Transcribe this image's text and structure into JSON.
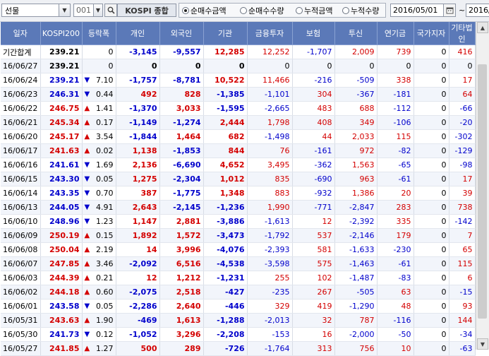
{
  "toolbar": {
    "market_select": "선물",
    "code_input": "001",
    "index_name": "KOSPI 종합",
    "radios": [
      {
        "label": "순매수금액",
        "selected": true
      },
      {
        "label": "순매수수량",
        "selected": false
      },
      {
        "label": "누적금액",
        "selected": false
      },
      {
        "label": "누적수량",
        "selected": false
      }
    ],
    "start_date": "2016/05/01",
    "range_sep": "~",
    "end_date": "2016/"
  },
  "columns": [
    "일자",
    "KOSPI200",
    "등락폭",
    "개인",
    "외국인",
    "기관",
    "금융투자",
    "보험",
    "투신",
    "연기금",
    "국가지자",
    "기타법인"
  ],
  "rows": [
    {
      "date": "기간합계",
      "kospi": "239.21",
      "dir": "",
      "chg": "0",
      "kospi_c": "k",
      "v": [
        [
          "-3,145",
          "b"
        ],
        [
          "-9,557",
          "b"
        ],
        [
          "12,285",
          "r"
        ],
        [
          "12,252",
          "r"
        ],
        [
          "-1,707",
          "b"
        ],
        [
          "2,009",
          "r"
        ],
        [
          "739",
          "r"
        ],
        [
          "0",
          "k"
        ],
        [
          "416",
          "r"
        ]
      ]
    },
    {
      "date": "16/06/27",
      "kospi": "239.21",
      "dir": "",
      "chg": "0",
      "kospi_c": "k",
      "v": [
        [
          "0",
          "k"
        ],
        [
          "0",
          "k"
        ],
        [
          "0",
          "k"
        ],
        [
          "0",
          "k"
        ],
        [
          "0",
          "k"
        ],
        [
          "0",
          "k"
        ],
        [
          "0",
          "k"
        ],
        [
          "0",
          "k"
        ],
        [
          "0",
          "k"
        ]
      ]
    },
    {
      "date": "16/06/24",
      "kospi": "239.21",
      "dir": "down",
      "chg": "7.10",
      "kospi_c": "b",
      "v": [
        [
          "-1,757",
          "b"
        ],
        [
          "-8,781",
          "b"
        ],
        [
          "10,522",
          "r"
        ],
        [
          "11,466",
          "r"
        ],
        [
          "-216",
          "b"
        ],
        [
          "-509",
          "b"
        ],
        [
          "338",
          "r"
        ],
        [
          "0",
          "k"
        ],
        [
          "17",
          "r"
        ]
      ]
    },
    {
      "date": "16/06/23",
      "kospi": "246.31",
      "dir": "down",
      "chg": "0.44",
      "kospi_c": "b",
      "v": [
        [
          "492",
          "r"
        ],
        [
          "828",
          "r"
        ],
        [
          "-1,385",
          "b"
        ],
        [
          "-1,101",
          "b"
        ],
        [
          "304",
          "r"
        ],
        [
          "-367",
          "b"
        ],
        [
          "-181",
          "b"
        ],
        [
          "0",
          "k"
        ],
        [
          "64",
          "r"
        ]
      ]
    },
    {
      "date": "16/06/22",
      "kospi": "246.75",
      "dir": "up",
      "chg": "1.41",
      "kospi_c": "r",
      "v": [
        [
          "-1,370",
          "b"
        ],
        [
          "3,033",
          "r"
        ],
        [
          "-1,595",
          "b"
        ],
        [
          "-2,665",
          "b"
        ],
        [
          "483",
          "r"
        ],
        [
          "688",
          "r"
        ],
        [
          "-112",
          "b"
        ],
        [
          "0",
          "k"
        ],
        [
          "-66",
          "b"
        ]
      ]
    },
    {
      "date": "16/06/21",
      "kospi": "245.34",
      "dir": "up",
      "chg": "0.17",
      "kospi_c": "r",
      "v": [
        [
          "-1,149",
          "b"
        ],
        [
          "-1,274",
          "b"
        ],
        [
          "2,444",
          "r"
        ],
        [
          "1,798",
          "r"
        ],
        [
          "408",
          "r"
        ],
        [
          "349",
          "r"
        ],
        [
          "-106",
          "b"
        ],
        [
          "0",
          "k"
        ],
        [
          "-20",
          "b"
        ]
      ]
    },
    {
      "date": "16/06/20",
      "kospi": "245.17",
      "dir": "up",
      "chg": "3.54",
      "kospi_c": "r",
      "v": [
        [
          "-1,844",
          "b"
        ],
        [
          "1,464",
          "r"
        ],
        [
          "682",
          "r"
        ],
        [
          "-1,498",
          "b"
        ],
        [
          "44",
          "r"
        ],
        [
          "2,033",
          "r"
        ],
        [
          "115",
          "r"
        ],
        [
          "0",
          "k"
        ],
        [
          "-302",
          "b"
        ]
      ]
    },
    {
      "date": "16/06/17",
      "kospi": "241.63",
      "dir": "up",
      "chg": "0.02",
      "kospi_c": "r",
      "v": [
        [
          "1,138",
          "r"
        ],
        [
          "-1,853",
          "b"
        ],
        [
          "844",
          "r"
        ],
        [
          "76",
          "r"
        ],
        [
          "-161",
          "b"
        ],
        [
          "972",
          "r"
        ],
        [
          "-82",
          "b"
        ],
        [
          "0",
          "k"
        ],
        [
          "-129",
          "b"
        ]
      ]
    },
    {
      "date": "16/06/16",
      "kospi": "241.61",
      "dir": "down",
      "chg": "1.69",
      "kospi_c": "b",
      "v": [
        [
          "2,136",
          "r"
        ],
        [
          "-6,690",
          "b"
        ],
        [
          "4,652",
          "r"
        ],
        [
          "3,495",
          "r"
        ],
        [
          "-362",
          "b"
        ],
        [
          "1,563",
          "r"
        ],
        [
          "-65",
          "b"
        ],
        [
          "0",
          "k"
        ],
        [
          "-98",
          "b"
        ]
      ]
    },
    {
      "date": "16/06/15",
      "kospi": "243.30",
      "dir": "down",
      "chg": "0.05",
      "kospi_c": "b",
      "v": [
        [
          "1,275",
          "r"
        ],
        [
          "-2,304",
          "b"
        ],
        [
          "1,012",
          "r"
        ],
        [
          "835",
          "r"
        ],
        [
          "-690",
          "b"
        ],
        [
          "963",
          "r"
        ],
        [
          "-61",
          "b"
        ],
        [
          "0",
          "k"
        ],
        [
          "17",
          "r"
        ]
      ]
    },
    {
      "date": "16/06/14",
      "kospi": "243.35",
      "dir": "down",
      "chg": "0.70",
      "kospi_c": "b",
      "v": [
        [
          "387",
          "r"
        ],
        [
          "-1,775",
          "b"
        ],
        [
          "1,348",
          "r"
        ],
        [
          "883",
          "r"
        ],
        [
          "-932",
          "b"
        ],
        [
          "1,386",
          "r"
        ],
        [
          "20",
          "r"
        ],
        [
          "0",
          "k"
        ],
        [
          "39",
          "r"
        ]
      ]
    },
    {
      "date": "16/06/13",
      "kospi": "244.05",
      "dir": "down",
      "chg": "4.91",
      "kospi_c": "b",
      "v": [
        [
          "2,643",
          "r"
        ],
        [
          "-2,145",
          "b"
        ],
        [
          "-1,236",
          "b"
        ],
        [
          "1,990",
          "r"
        ],
        [
          "-771",
          "b"
        ],
        [
          "-2,847",
          "b"
        ],
        [
          "283",
          "r"
        ],
        [
          "0",
          "k"
        ],
        [
          "738",
          "r"
        ]
      ]
    },
    {
      "date": "16/06/10",
      "kospi": "248.96",
      "dir": "down",
      "chg": "1.23",
      "kospi_c": "b",
      "v": [
        [
          "1,147",
          "r"
        ],
        [
          "2,881",
          "r"
        ],
        [
          "-3,886",
          "b"
        ],
        [
          "-1,613",
          "b"
        ],
        [
          "12",
          "r"
        ],
        [
          "-2,392",
          "b"
        ],
        [
          "335",
          "r"
        ],
        [
          "0",
          "k"
        ],
        [
          "-142",
          "b"
        ]
      ]
    },
    {
      "date": "16/06/09",
      "kospi": "250.19",
      "dir": "up",
      "chg": "0.15",
      "kospi_c": "r",
      "v": [
        [
          "1,892",
          "r"
        ],
        [
          "1,572",
          "r"
        ],
        [
          "-3,473",
          "b"
        ],
        [
          "-1,792",
          "b"
        ],
        [
          "537",
          "r"
        ],
        [
          "-2,146",
          "b"
        ],
        [
          "179",
          "r"
        ],
        [
          "0",
          "k"
        ],
        [
          "7",
          "r"
        ]
      ]
    },
    {
      "date": "16/06/08",
      "kospi": "250.04",
      "dir": "up",
      "chg": "2.19",
      "kospi_c": "r",
      "v": [
        [
          "14",
          "r"
        ],
        [
          "3,996",
          "r"
        ],
        [
          "-4,076",
          "b"
        ],
        [
          "-2,393",
          "b"
        ],
        [
          "581",
          "r"
        ],
        [
          "-1,633",
          "b"
        ],
        [
          "-230",
          "b"
        ],
        [
          "0",
          "k"
        ],
        [
          "65",
          "r"
        ]
      ]
    },
    {
      "date": "16/06/07",
      "kospi": "247.85",
      "dir": "up",
      "chg": "3.46",
      "kospi_c": "r",
      "v": [
        [
          "-2,092",
          "b"
        ],
        [
          "6,516",
          "r"
        ],
        [
          "-4,538",
          "b"
        ],
        [
          "-3,598",
          "b"
        ],
        [
          "575",
          "r"
        ],
        [
          "-1,463",
          "b"
        ],
        [
          "-61",
          "b"
        ],
        [
          "0",
          "k"
        ],
        [
          "115",
          "r"
        ]
      ]
    },
    {
      "date": "16/06/03",
      "kospi": "244.39",
      "dir": "up",
      "chg": "0.21",
      "kospi_c": "r",
      "v": [
        [
          "12",
          "r"
        ],
        [
          "1,212",
          "r"
        ],
        [
          "-1,231",
          "b"
        ],
        [
          "255",
          "r"
        ],
        [
          "102",
          "r"
        ],
        [
          "-1,487",
          "b"
        ],
        [
          "-83",
          "b"
        ],
        [
          "0",
          "k"
        ],
        [
          "6",
          "r"
        ]
      ]
    },
    {
      "date": "16/06/02",
      "kospi": "244.18",
      "dir": "up",
      "chg": "0.60",
      "kospi_c": "r",
      "v": [
        [
          "-2,075",
          "b"
        ],
        [
          "2,518",
          "r"
        ],
        [
          "-427",
          "b"
        ],
        [
          "-235",
          "b"
        ],
        [
          "267",
          "r"
        ],
        [
          "-505",
          "b"
        ],
        [
          "63",
          "r"
        ],
        [
          "0",
          "k"
        ],
        [
          "-15",
          "b"
        ]
      ]
    },
    {
      "date": "16/06/01",
      "kospi": "243.58",
      "dir": "down",
      "chg": "0.05",
      "kospi_c": "b",
      "v": [
        [
          "-2,286",
          "b"
        ],
        [
          "2,640",
          "r"
        ],
        [
          "-446",
          "b"
        ],
        [
          "329",
          "r"
        ],
        [
          "419",
          "r"
        ],
        [
          "-1,290",
          "b"
        ],
        [
          "48",
          "r"
        ],
        [
          "0",
          "k"
        ],
        [
          "93",
          "r"
        ]
      ]
    },
    {
      "date": "16/05/31",
      "kospi": "243.63",
      "dir": "up",
      "chg": "1.90",
      "kospi_c": "r",
      "v": [
        [
          "-469",
          "b"
        ],
        [
          "1,613",
          "r"
        ],
        [
          "-1,288",
          "b"
        ],
        [
          "-2,013",
          "b"
        ],
        [
          "32",
          "r"
        ],
        [
          "787",
          "r"
        ],
        [
          "-116",
          "b"
        ],
        [
          "0",
          "k"
        ],
        [
          "144",
          "r"
        ]
      ]
    },
    {
      "date": "16/05/30",
      "kospi": "241.73",
      "dir": "down",
      "chg": "0.12",
      "kospi_c": "b",
      "v": [
        [
          "-1,052",
          "b"
        ],
        [
          "3,296",
          "r"
        ],
        [
          "-2,208",
          "b"
        ],
        [
          "-153",
          "b"
        ],
        [
          "16",
          "r"
        ],
        [
          "-2,000",
          "b"
        ],
        [
          "-50",
          "b"
        ],
        [
          "0",
          "k"
        ],
        [
          "-34",
          "b"
        ]
      ]
    },
    {
      "date": "16/05/27",
      "kospi": "241.85",
      "dir": "up",
      "chg": "1.27",
      "kospi_c": "r",
      "v": [
        [
          "500",
          "r"
        ],
        [
          "289",
          "r"
        ],
        [
          "-726",
          "b"
        ],
        [
          "-1,764",
          "b"
        ],
        [
          "313",
          "r"
        ],
        [
          "756",
          "r"
        ],
        [
          "10",
          "r"
        ],
        [
          "0",
          "k"
        ],
        [
          "-63",
          "b"
        ]
      ]
    }
  ],
  "colors": {
    "header_bg": "#5b79b8",
    "positive": "#d40000",
    "negative": "#0000cc",
    "zebra": "#f2f5fb"
  }
}
